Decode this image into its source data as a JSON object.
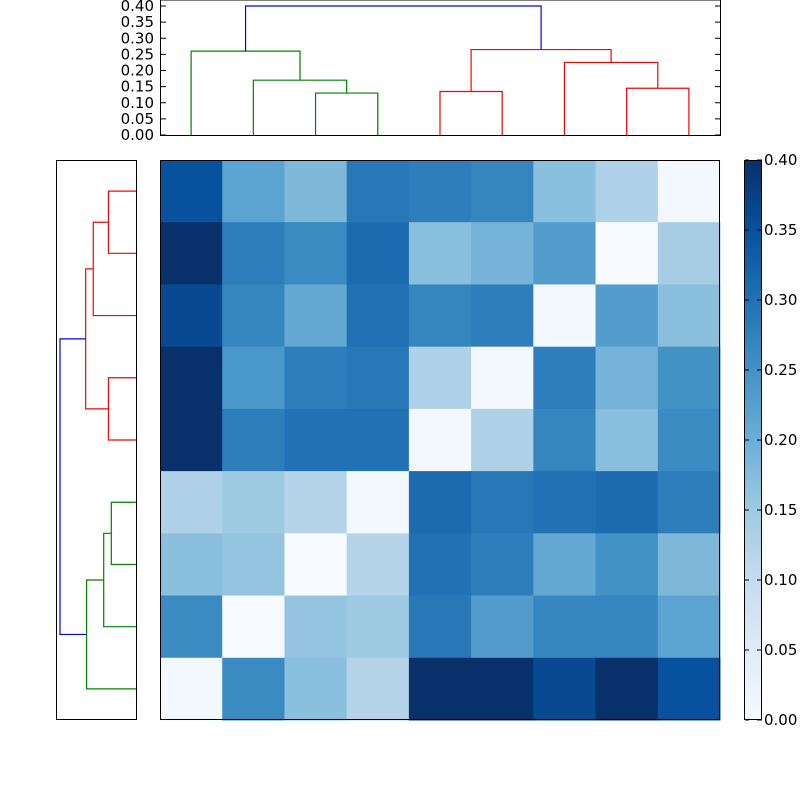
{
  "chart_data": [
    {
      "type": "dendrogram",
      "orientation": "top",
      "ylim": [
        0,
        0.4
      ],
      "yticks": [
        "0.00",
        "0.05",
        "0.10",
        "0.15",
        "0.20",
        "0.25",
        "0.30",
        "0.35",
        "0.40"
      ],
      "leaf_count": 9,
      "links": [
        {
          "color": "#008000",
          "left": 3,
          "right": 4,
          "height": 0.13,
          "left_h": 0,
          "right_h": 0
        },
        {
          "color": "#008000",
          "left": 2,
          "right": 3.5,
          "height": 0.17,
          "left_h": 0,
          "right_h": 0.13
        },
        {
          "color": "#008000",
          "left": 1,
          "right": 2.75,
          "height": 0.26,
          "left_h": 0,
          "right_h": 0.17
        },
        {
          "color": "#ff0000",
          "left": 5,
          "right": 6,
          "height": 0.135,
          "left_h": 0,
          "right_h": 0
        },
        {
          "color": "#ff0000",
          "left": 8,
          "right": 9,
          "height": 0.145,
          "left_h": 0,
          "right_h": 0
        },
        {
          "color": "#ff0000",
          "left": 7,
          "right": 8.5,
          "height": 0.225,
          "left_h": 0,
          "right_h": 0.145
        },
        {
          "color": "#ff0000",
          "left": 5.5,
          "right": 7.75,
          "height": 0.265,
          "left_h": 0.135,
          "right_h": 0.225
        },
        {
          "color": "#0000ff",
          "left": 1.875,
          "right": 6.625,
          "height": 0.4,
          "left_h": 0.26,
          "right_h": 0.265
        }
      ]
    },
    {
      "type": "dendrogram",
      "orientation": "left",
      "leaf_count": 9,
      "xlim": [
        0,
        0.4
      ],
      "links": [
        {
          "color": "#ff0000",
          "left": 1,
          "right": 2,
          "height": 0.145,
          "left_h": 0,
          "right_h": 0
        },
        {
          "color": "#ff0000",
          "left": 4,
          "right": 5,
          "height": 0.145,
          "left_h": 0,
          "right_h": 0
        },
        {
          "color": "#ff0000",
          "left": 1.5,
          "right": 3,
          "height": 0.225,
          "left_h": 0.145,
          "right_h": 0
        },
        {
          "color": "#ff0000",
          "left": 2.25,
          "right": 4.5,
          "height": 0.265,
          "left_h": 0.225,
          "right_h": 0.145
        },
        {
          "color": "#008000",
          "left": 6,
          "right": 7,
          "height": 0.13,
          "left_h": 0,
          "right_h": 0
        },
        {
          "color": "#008000",
          "left": 6.5,
          "right": 8,
          "height": 0.17,
          "left_h": 0.13,
          "right_h": 0
        },
        {
          "color": "#008000",
          "left": 7.25,
          "right": 9,
          "height": 0.26,
          "left_h": 0.17,
          "right_h": 0
        },
        {
          "color": "#0000ff",
          "left": 3.375,
          "right": 8.125,
          "height": 0.4,
          "left_h": 0.265,
          "right_h": 0.26
        }
      ]
    },
    {
      "type": "heatmap",
      "colormap": "Blues",
      "vmin": 0,
      "vmax": 0.4,
      "values": [
        [
          0.35,
          0.22,
          0.18,
          0.29,
          0.28,
          0.27,
          0.17,
          0.13,
          0.01
        ],
        [
          0.4,
          0.28,
          0.26,
          0.31,
          0.17,
          0.19,
          0.23,
          0.0,
          0.14
        ],
        [
          0.36,
          0.27,
          0.21,
          0.3,
          0.27,
          0.28,
          0.01,
          0.23,
          0.17
        ],
        [
          0.4,
          0.24,
          0.28,
          0.29,
          0.13,
          0.01,
          0.28,
          0.19,
          0.25
        ],
        [
          0.4,
          0.28,
          0.3,
          0.3,
          0.01,
          0.13,
          0.27,
          0.17,
          0.26
        ],
        [
          0.13,
          0.15,
          0.12,
          0.01,
          0.31,
          0.29,
          0.3,
          0.31,
          0.28
        ],
        [
          0.17,
          0.16,
          0.0,
          0.12,
          0.3,
          0.28,
          0.21,
          0.25,
          0.18
        ],
        [
          0.26,
          0.0,
          0.16,
          0.15,
          0.29,
          0.23,
          0.27,
          0.27,
          0.22
        ],
        [
          0.01,
          0.26,
          0.17,
          0.12,
          0.4,
          0.4,
          0.36,
          0.4,
          0.35
        ]
      ]
    },
    {
      "type": "colorbar",
      "ylim": [
        0,
        0.4
      ],
      "ticks": [
        "0.00",
        "0.05",
        "0.10",
        "0.15",
        "0.20",
        "0.25",
        "0.30",
        "0.35",
        "0.40"
      ]
    }
  ]
}
